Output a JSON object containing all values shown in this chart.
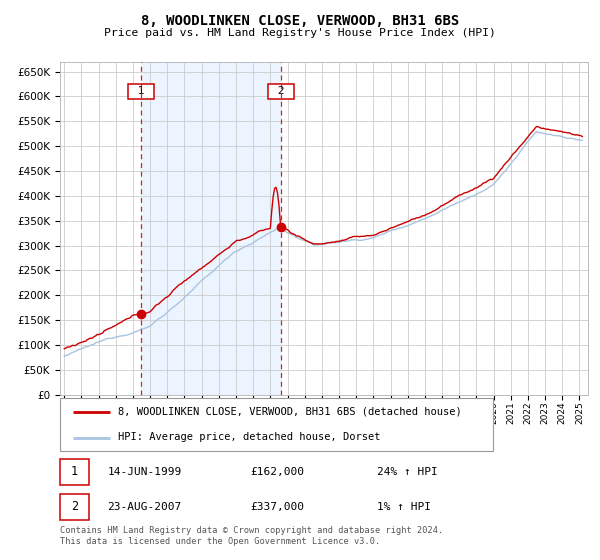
{
  "title": "8, WOODLINKEN CLOSE, VERWOOD, BH31 6BS",
  "subtitle": "Price paid vs. HM Land Registry's House Price Index (HPI)",
  "legend_line1": "8, WOODLINKEN CLOSE, VERWOOD, BH31 6BS (detached house)",
  "legend_line2": "HPI: Average price, detached house, Dorset",
  "transaction1_date": "14-JUN-1999",
  "transaction1_price": 162000,
  "transaction1_hpi": "24% ↑ HPI",
  "transaction2_date": "23-AUG-2007",
  "transaction2_price": 337000,
  "transaction2_hpi": "1% ↑ HPI",
  "footer": "Contains HM Land Registry data © Crown copyright and database right 2024.\nThis data is licensed under the Open Government Licence v3.0.",
  "hpi_color": "#a8c4e0",
  "price_color": "#cc0000",
  "span_color": "#ddeeff",
  "grid_color": "#cccccc",
  "ylim": [
    0,
    670000
  ],
  "yticks": [
    0,
    50000,
    100000,
    150000,
    200000,
    250000,
    300000,
    350000,
    400000,
    450000,
    500000,
    550000,
    600000,
    650000
  ],
  "transaction1_x": 1999.45,
  "transaction2_x": 2007.64,
  "year_start": 1995,
  "year_end": 2025
}
